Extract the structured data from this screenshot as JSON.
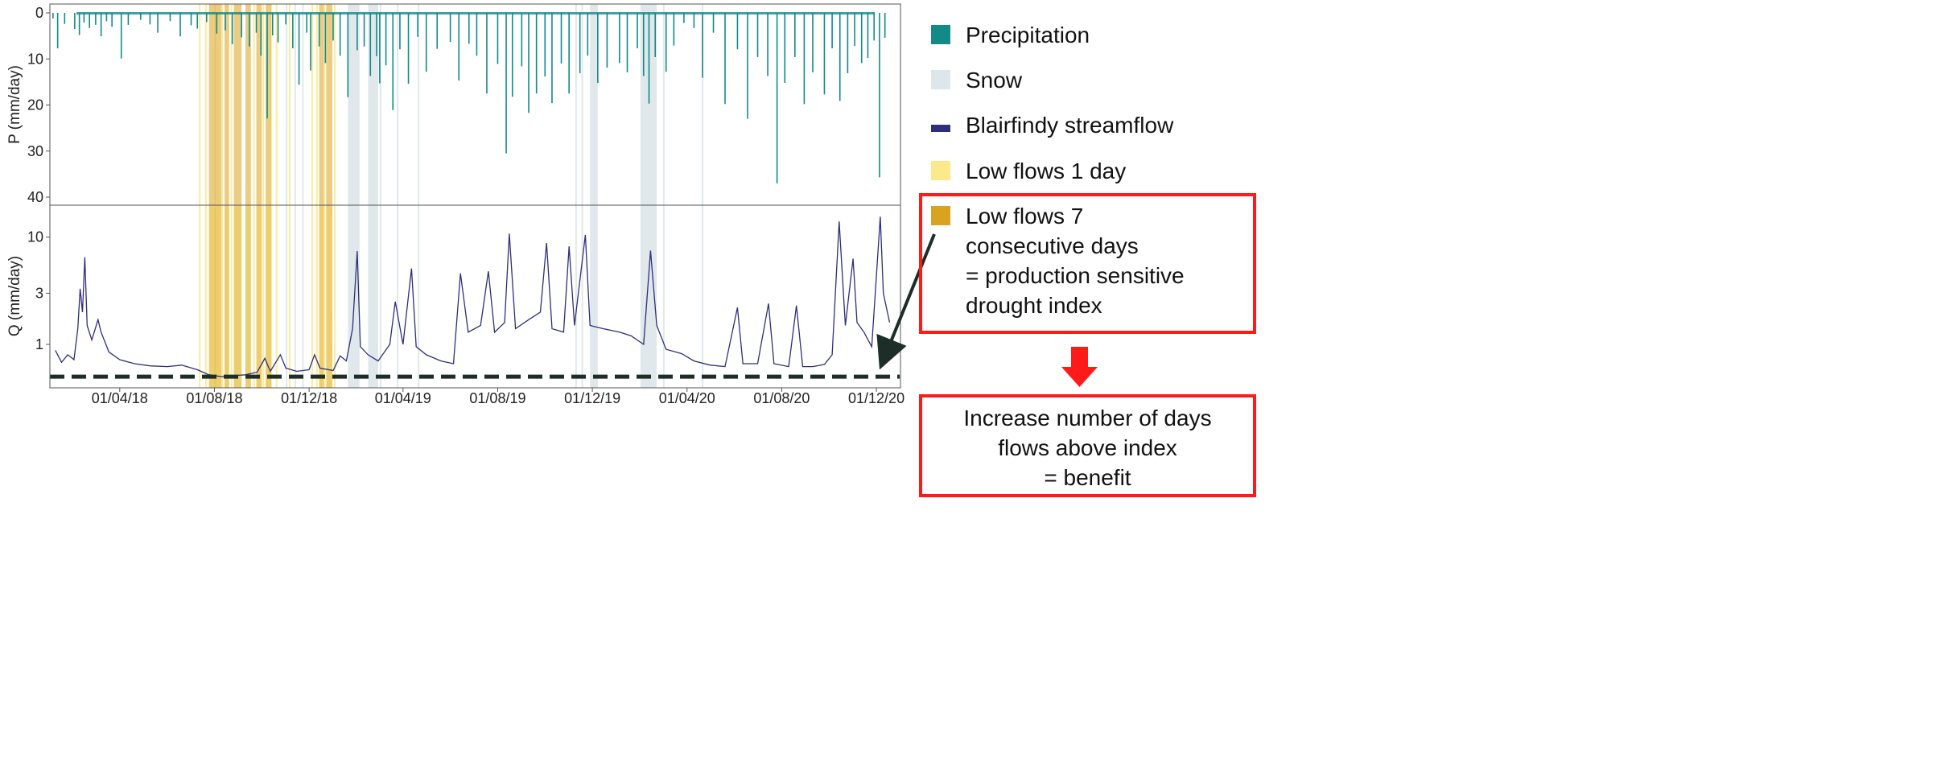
{
  "chart_data": {
    "type": "line",
    "panels": [
      {
        "name": "precipitation",
        "ylabel": "P (mm/day)",
        "yticks": [
          0,
          10,
          20,
          30,
          40
        ],
        "ylim": [
          0,
          42
        ],
        "inverted": true
      },
      {
        "name": "streamflow",
        "ylabel": "Q (mm/day)",
        "yticks": [
          1,
          3,
          10
        ],
        "ytick_labels": [
          "1",
          "3",
          "10"
        ],
        "ylim": [
          0.4,
          17
        ],
        "scale": "log"
      }
    ],
    "x_start": "2018-01-01",
    "x_end": "2020-12-31",
    "xticks": [
      "01/04/18",
      "01/08/18",
      "01/12/18",
      "01/04/19",
      "01/08/19",
      "01/12/19",
      "01/04/20",
      "01/08/20",
      "01/12/20"
    ],
    "xtick_dates": [
      "2018-04-01",
      "2018-08-01",
      "2018-12-01",
      "2019-04-01",
      "2019-08-01",
      "2019-12-01",
      "2020-04-01",
      "2020-08-01",
      "2020-12-01"
    ],
    "series": [
      {
        "name": "Blairfindy streamflow",
        "panel": "streamflow",
        "color": "#2e2e7a",
        "points": [
          [
            "2018-01-08",
            0.88
          ],
          [
            "2018-01-16",
            0.68
          ],
          [
            "2018-01-24",
            0.8
          ],
          [
            "2018-02-01",
            0.72
          ],
          [
            "2018-02-06",
            1.4
          ],
          [
            "2018-02-09",
            3.3
          ],
          [
            "2018-02-12",
            2.0
          ],
          [
            "2018-02-15",
            6.5
          ],
          [
            "2018-02-18",
            1.5
          ],
          [
            "2018-02-24",
            1.1
          ],
          [
            "2018-03-04",
            1.7
          ],
          [
            "2018-03-08",
            1.3
          ],
          [
            "2018-03-18",
            0.85
          ],
          [
            "2018-04-01",
            0.72
          ],
          [
            "2018-04-20",
            0.66
          ],
          [
            "2018-05-10",
            0.63
          ],
          [
            "2018-06-01",
            0.62
          ],
          [
            "2018-06-20",
            0.64
          ],
          [
            "2018-07-10",
            0.58
          ],
          [
            "2018-07-25",
            0.52
          ],
          [
            "2018-08-10",
            0.5
          ],
          [
            "2018-08-25",
            0.51
          ],
          [
            "2018-09-10",
            0.52
          ],
          [
            "2018-09-25",
            0.55
          ],
          [
            "2018-10-05",
            0.74
          ],
          [
            "2018-10-12",
            0.56
          ],
          [
            "2018-10-25",
            0.8
          ],
          [
            "2018-11-01",
            0.6
          ],
          [
            "2018-11-15",
            0.56
          ],
          [
            "2018-12-01",
            0.58
          ],
          [
            "2018-12-08",
            0.8
          ],
          [
            "2018-12-15",
            0.6
          ],
          [
            "2019-01-01",
            0.57
          ],
          [
            "2019-01-10",
            0.78
          ],
          [
            "2019-01-18",
            0.7
          ],
          [
            "2019-01-26",
            1.4
          ],
          [
            "2019-02-01",
            7.4
          ],
          [
            "2019-02-05",
            0.95
          ],
          [
            "2019-02-15",
            0.8
          ],
          [
            "2019-02-28",
            0.7
          ],
          [
            "2019-03-15",
            1.0
          ],
          [
            "2019-03-22",
            2.5
          ],
          [
            "2019-04-01",
            1.0
          ],
          [
            "2019-04-12",
            5.1
          ],
          [
            "2019-04-18",
            0.95
          ],
          [
            "2019-05-01",
            0.8
          ],
          [
            "2019-05-20",
            0.7
          ],
          [
            "2019-06-05",
            0.66
          ],
          [
            "2019-06-14",
            4.6
          ],
          [
            "2019-06-24",
            1.3
          ],
          [
            "2019-07-10",
            1.5
          ],
          [
            "2019-07-20",
            4.8
          ],
          [
            "2019-07-28",
            1.3
          ],
          [
            "2019-08-10",
            1.6
          ],
          [
            "2019-08-16",
            10.8
          ],
          [
            "2019-08-24",
            1.4
          ],
          [
            "2019-09-10",
            1.7
          ],
          [
            "2019-09-25",
            2.0
          ],
          [
            "2019-10-03",
            8.8
          ],
          [
            "2019-10-10",
            1.4
          ],
          [
            "2019-10-25",
            1.3
          ],
          [
            "2019-11-01",
            8.2
          ],
          [
            "2019-11-08",
            1.5
          ],
          [
            "2019-11-22",
            10.5
          ],
          [
            "2019-11-28",
            1.5
          ],
          [
            "2019-12-15",
            1.4
          ],
          [
            "2020-01-05",
            1.3
          ],
          [
            "2020-01-20",
            1.2
          ],
          [
            "2020-02-05",
            1.0
          ],
          [
            "2020-02-14",
            7.5
          ],
          [
            "2020-02-22",
            1.5
          ],
          [
            "2020-03-05",
            0.9
          ],
          [
            "2020-03-25",
            0.82
          ],
          [
            "2020-04-10",
            0.7
          ],
          [
            "2020-05-01",
            0.64
          ],
          [
            "2020-05-20",
            0.62
          ],
          [
            "2020-06-05",
            2.2
          ],
          [
            "2020-06-12",
            0.66
          ],
          [
            "2020-07-01",
            0.66
          ],
          [
            "2020-07-15",
            2.4
          ],
          [
            "2020-07-22",
            0.66
          ],
          [
            "2020-08-10",
            0.62
          ],
          [
            "2020-08-20",
            2.3
          ],
          [
            "2020-08-28",
            0.62
          ],
          [
            "2020-09-10",
            0.62
          ],
          [
            "2020-09-25",
            0.65
          ],
          [
            "2020-10-05",
            0.8
          ],
          [
            "2020-10-14",
            14.0
          ],
          [
            "2020-10-22",
            1.5
          ],
          [
            "2020-11-01",
            6.3
          ],
          [
            "2020-11-06",
            1.6
          ],
          [
            "2020-11-15",
            1.3
          ],
          [
            "2020-11-25",
            0.95
          ],
          [
            "2020-12-06",
            15.5
          ],
          [
            "2020-12-10",
            3.0
          ],
          [
            "2020-12-18",
            1.6
          ]
        ]
      },
      {
        "name": "Precipitation",
        "panel": "precipitation",
        "color": "#128a88",
        "events": [
          [
            "2018-01-05",
            1.2
          ],
          [
            "2018-01-11",
            7.7
          ],
          [
            "2018-01-20",
            2.4
          ],
          [
            "2018-02-02",
            3.5
          ],
          [
            "2018-02-08",
            4.8
          ],
          [
            "2018-02-14",
            2.1
          ],
          [
            "2018-02-21",
            3.3
          ],
          [
            "2018-03-01",
            2.6
          ],
          [
            "2018-03-08",
            5.1
          ],
          [
            "2018-03-15",
            1.8
          ],
          [
            "2018-03-22",
            3.0
          ],
          [
            "2018-04-03",
            9.9
          ],
          [
            "2018-04-12",
            2.6
          ],
          [
            "2018-04-28",
            1.5
          ],
          [
            "2018-05-10",
            2.5
          ],
          [
            "2018-05-20",
            4.3
          ],
          [
            "2018-06-05",
            1.8
          ],
          [
            "2018-06-18",
            5.1
          ],
          [
            "2018-07-02",
            2.7
          ],
          [
            "2018-07-10",
            3.4
          ],
          [
            "2018-07-22",
            2.0
          ],
          [
            "2018-08-04",
            4.5
          ],
          [
            "2018-08-15",
            3.8
          ],
          [
            "2018-08-24",
            6.8
          ],
          [
            "2018-09-05",
            5.3
          ],
          [
            "2018-09-15",
            7.3
          ],
          [
            "2018-09-24",
            4.3
          ],
          [
            "2018-09-30",
            9.3
          ],
          [
            "2018-10-08",
            22.9
          ],
          [
            "2018-10-15",
            4.9
          ],
          [
            "2018-10-22",
            6.4
          ],
          [
            "2018-11-01",
            2.5
          ],
          [
            "2018-11-10",
            7.7
          ],
          [
            "2018-11-18",
            15.6
          ],
          [
            "2018-11-28",
            4.3
          ],
          [
            "2018-12-03",
            12.5
          ],
          [
            "2018-12-14",
            7.3
          ],
          [
            "2018-12-22",
            10.9
          ],
          [
            "2019-01-01",
            6.0
          ],
          [
            "2019-01-10",
            9.3
          ],
          [
            "2019-01-20",
            18.3
          ],
          [
            "2019-02-01",
            8.1
          ],
          [
            "2019-02-10",
            7.3
          ],
          [
            "2019-02-18",
            13.7
          ],
          [
            "2019-02-26",
            9.4
          ],
          [
            "2019-03-02",
            15.3
          ],
          [
            "2019-03-10",
            11.4
          ],
          [
            "2019-03-19",
            21.1
          ],
          [
            "2019-03-28",
            7.9
          ],
          [
            "2019-04-08",
            15.4
          ],
          [
            "2019-04-20",
            5.2
          ],
          [
            "2019-05-01",
            12.8
          ],
          [
            "2019-05-15",
            7.8
          ],
          [
            "2019-06-01",
            6.3
          ],
          [
            "2019-06-12",
            14.7
          ],
          [
            "2019-06-25",
            6.7
          ],
          [
            "2019-07-05",
            9.3
          ],
          [
            "2019-07-18",
            17.5
          ],
          [
            "2019-08-01",
            11.1
          ],
          [
            "2019-08-12",
            30.5
          ],
          [
            "2019-08-20",
            18.2
          ],
          [
            "2019-09-01",
            11.6
          ],
          [
            "2019-09-10",
            21.7
          ],
          [
            "2019-09-20",
            17.5
          ],
          [
            "2019-10-01",
            13.8
          ],
          [
            "2019-10-10",
            19.6
          ],
          [
            "2019-10-22",
            11.0
          ],
          [
            "2019-11-01",
            17.5
          ],
          [
            "2019-11-15",
            13.1
          ],
          [
            "2019-11-25",
            9.3
          ],
          [
            "2019-12-08",
            15.2
          ],
          [
            "2019-12-20",
            11.9
          ],
          [
            "2020-01-05",
            10.9
          ],
          [
            "2020-01-15",
            12.9
          ],
          [
            "2020-01-28",
            7.7
          ],
          [
            "2020-02-05",
            13.7
          ],
          [
            "2020-02-12",
            19.7
          ],
          [
            "2020-02-20",
            9.6
          ],
          [
            "2020-03-05",
            12.8
          ],
          [
            "2020-03-15",
            7.1
          ],
          [
            "2020-03-28",
            2.2
          ],
          [
            "2020-04-10",
            3.3
          ],
          [
            "2020-04-21",
            14.1
          ],
          [
            "2020-05-05",
            4.3
          ],
          [
            "2020-05-20",
            19.8
          ],
          [
            "2020-06-05",
            7.9
          ],
          [
            "2020-06-18",
            23.0
          ],
          [
            "2020-07-01",
            9.6
          ],
          [
            "2020-07-14",
            13.7
          ],
          [
            "2020-07-26",
            37.0
          ],
          [
            "2020-08-05",
            15.2
          ],
          [
            "2020-08-18",
            9.6
          ],
          [
            "2020-08-30",
            19.8
          ],
          [
            "2020-09-10",
            12.9
          ],
          [
            "2020-09-25",
            17.7
          ],
          [
            "2020-10-05",
            7.7
          ],
          [
            "2020-10-15",
            19.1
          ],
          [
            "2020-10-25",
            13.1
          ],
          [
            "2020-11-03",
            7.2
          ],
          [
            "2020-11-12",
            10.9
          ],
          [
            "2020-11-20",
            9.8
          ],
          [
            "2020-11-28",
            6.0
          ],
          [
            "2020-12-05",
            35.7
          ],
          [
            "2020-12-12",
            5.4
          ]
        ]
      }
    ],
    "shading": {
      "snow": [
        [
          "2018-11-01",
          "2018-11-03"
        ],
        [
          "2018-11-12",
          "2018-11-14"
        ],
        [
          "2018-11-22",
          "2018-11-24"
        ],
        [
          "2019-01-20",
          "2019-02-04"
        ],
        [
          "2019-02-15",
          "2019-02-28"
        ],
        [
          "2019-03-02",
          "2019-03-04"
        ],
        [
          "2019-03-24",
          "2019-03-26"
        ],
        [
          "2019-04-20",
          "2019-04-22"
        ],
        [
          "2019-11-09",
          "2019-11-11"
        ],
        [
          "2019-11-17",
          "2019-11-19"
        ],
        [
          "2019-11-28",
          "2019-12-08"
        ],
        [
          "2020-02-01",
          "2020-02-22"
        ],
        [
          "2020-03-01",
          "2020-03-03"
        ],
        [
          "2020-04-20",
          "2020-04-22"
        ]
      ],
      "low_1day": [
        [
          "2018-07-12",
          "2018-07-14"
        ],
        [
          "2018-07-20",
          "2018-07-22"
        ],
        [
          "2018-08-01",
          "2018-08-03"
        ],
        [
          "2018-08-10",
          "2018-08-12"
        ],
        [
          "2018-08-22",
          "2018-08-24"
        ],
        [
          "2018-09-20",
          "2018-09-22"
        ],
        [
          "2018-10-02",
          "2018-10-04"
        ],
        [
          "2018-10-12",
          "2018-10-14"
        ],
        [
          "2018-10-19",
          "2018-10-21"
        ],
        [
          "2018-11-05",
          "2018-11-07"
        ],
        [
          "2018-12-04",
          "2018-12-06"
        ],
        [
          "2018-12-10",
          "2018-12-12"
        ],
        [
          "2018-12-20",
          "2018-12-22"
        ],
        [
          "2019-01-02",
          "2019-01-04"
        ]
      ],
      "low_7days": [
        [
          "2018-07-25",
          "2018-08-10"
        ],
        [
          "2018-08-14",
          "2018-08-20"
        ],
        [
          "2018-08-26",
          "2018-09-05"
        ],
        [
          "2018-09-10",
          "2018-09-17"
        ],
        [
          "2018-09-24",
          "2018-10-01"
        ],
        [
          "2018-10-06",
          "2018-10-13"
        ],
        [
          "2018-12-14",
          "2018-12-20"
        ],
        [
          "2018-12-23",
          "2018-12-31"
        ]
      ]
    },
    "index_line_value": 0.5,
    "index_line_style": "dashed"
  },
  "legend": {
    "items": [
      {
        "label": "Precipitation",
        "color": "#128a88",
        "shape": "square"
      },
      {
        "label": "Snow",
        "color": "#dde6ea",
        "shape": "square"
      },
      {
        "label": "Blairfindy streamflow",
        "color": "#2e2e7a",
        "shape": "bar"
      },
      {
        "label": "Low flows 1 day",
        "color": "#fbe98c",
        "shape": "square"
      },
      {
        "label": "Low flows 7",
        "color": "#d9a21f",
        "shape": "square"
      }
    ],
    "low7_extra_lines": [
      "consecutive days",
      "= production sensitive",
      "drought index"
    ]
  },
  "annotation": {
    "box_color": "#ff1a1a",
    "arrow_color": "#ff1a1a",
    "pointer_color": "#1d2d27",
    "benefit_lines": [
      "Increase number of days",
      "flows above index",
      "= benefit"
    ]
  }
}
